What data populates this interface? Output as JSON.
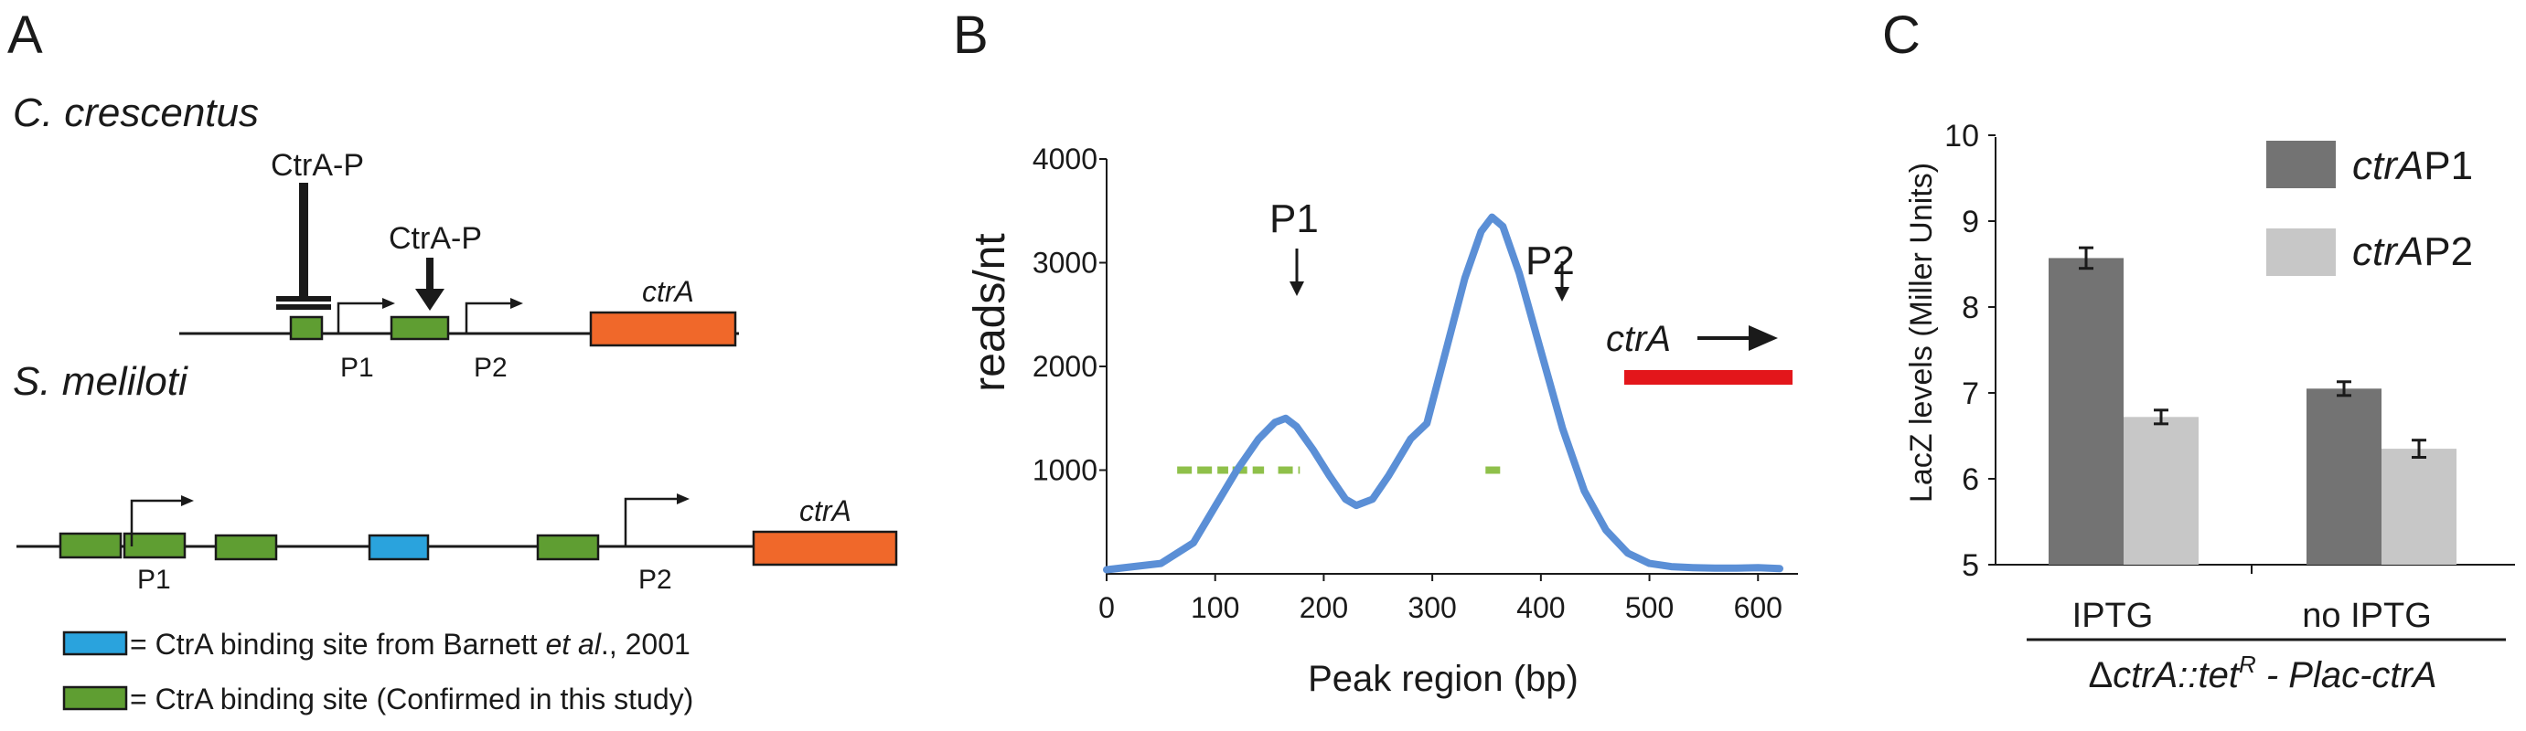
{
  "panels": {
    "a": {
      "letter": "A",
      "species_1": "C. crescentus",
      "species_2": "S. meliloti",
      "ctra_p_repress": "CtrA-P",
      "ctra_p_activate": "CtrA-P",
      "cc_p1": "P1",
      "cc_p2": "P2",
      "cc_gene": "ctrA",
      "sm_p1": "P1",
      "sm_p2": "P2",
      "sm_gene": "ctrA",
      "legend_blue_pre": "= CtrA binding site from Barnett ",
      "legend_blue_italic": "et al",
      "legend_blue_post": "., 2001",
      "legend_green": "= CtrA binding site (Confirmed in this study)",
      "colors": {
        "green": "#5f9e32",
        "blue": "#2aa3dd",
        "orange": "#f0682a",
        "line": "#1a1a1a"
      }
    },
    "b": {
      "letter": "B",
      "ylabel": "reads/nt",
      "xlabel": "Peak region (bp)",
      "p1": "P1",
      "p2": "P2",
      "gene": "ctrA",
      "xticks": [
        "0",
        "100",
        "200",
        "300",
        "400",
        "500",
        "600"
      ],
      "yticks": [
        "1000",
        "2000",
        "3000",
        "4000"
      ],
      "colors": {
        "curve": "#5b8fd6",
        "dash": "#8fc04a",
        "gene_bar": "#e3161b"
      }
    },
    "c": {
      "letter": "C",
      "ylabel": "LacZ levels (Miller Units)",
      "yticks": [
        "5",
        "6",
        "7",
        "8",
        "9",
        "10"
      ],
      "legend_1_italic": "ctrA",
      "legend_1_rest": "P1",
      "legend_2_italic": "ctrA",
      "legend_2_rest": "P2",
      "group_1": "IPTG",
      "group_2": "no IPTG",
      "strain_delta": "Δ",
      "strain_part1": "ctrA::tet",
      "strain_sup": "R",
      "strain_part2": " - Plac-ctrA",
      "colors": {
        "p1": "#737373",
        "p2": "#c7c7c7"
      }
    }
  },
  "chart_data": [
    {
      "type": "line",
      "title": "",
      "xlabel": "Peak region (bp)",
      "ylabel": "reads/nt",
      "xlim": [
        0,
        620
      ],
      "ylim": [
        0,
        4000
      ],
      "series": [
        {
          "x": [
            0,
            50,
            80,
            100,
            120,
            140,
            155,
            165,
            175,
            190,
            205,
            220,
            230,
            245,
            260,
            280,
            295,
            310,
            330,
            345,
            355,
            365,
            380,
            400,
            420,
            440,
            460,
            480,
            500,
            520,
            540,
            560,
            580,
            600,
            620
          ],
          "values": [
            40,
            100,
            300,
            650,
            1000,
            1300,
            1460,
            1500,
            1420,
            1200,
            950,
            720,
            660,
            720,
            950,
            1300,
            1450,
            2050,
            2850,
            3300,
            3440,
            3350,
            2900,
            2150,
            1400,
            800,
            420,
            200,
            100,
            70,
            60,
            55,
            55,
            60,
            50
          ]
        }
      ],
      "annotations": [
        "P1",
        "P2",
        "ctrA"
      ]
    },
    {
      "type": "bar",
      "title": "",
      "ylabel": "LacZ levels (Miller Units)",
      "categories": [
        "IPTG",
        "no IPTG"
      ],
      "ylim": [
        5,
        10
      ],
      "series": [
        {
          "name": "ctrAP1",
          "values": [
            8.57,
            7.05
          ],
          "errors": [
            0.12,
            0.08
          ]
        },
        {
          "name": "ctrAP2",
          "values": [
            6.72,
            6.35
          ],
          "errors": [
            0.08,
            0.1
          ]
        }
      ]
    }
  ]
}
